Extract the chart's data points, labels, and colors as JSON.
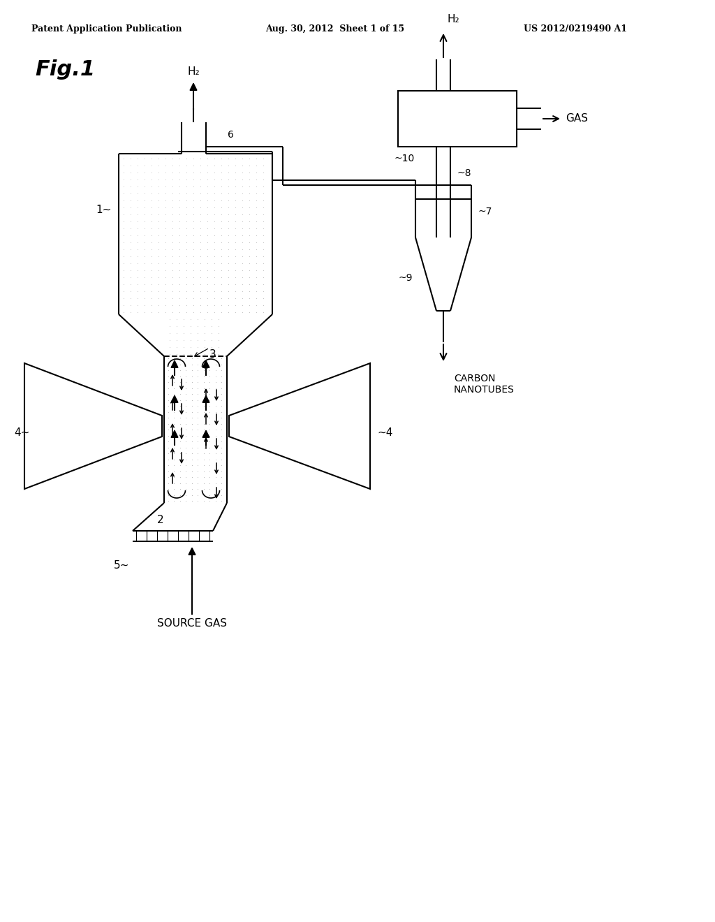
{
  "header_left": "Patent Application Publication",
  "header_mid": "Aug. 30, 2012  Sheet 1 of 15",
  "header_right": "US 2012/0219490 A1",
  "fig_label": "Fig.1",
  "bg_color": "#ffffff",
  "line_color": "#000000",
  "dot_color": "#c8c8c8",
  "labels": {
    "H2": "H₂",
    "GAS": "GAS",
    "CARBON_NANOTUBES": "CARBON\nNANOTUBES",
    "SOURCE_GAS": "SOURCE GAS",
    "1": "1",
    "2": "2",
    "3": "3",
    "4a": "4",
    "4b": "4",
    "5": "5",
    "6": "6",
    "7": "7",
    "8": "8",
    "9": "9",
    "10": "10"
  }
}
